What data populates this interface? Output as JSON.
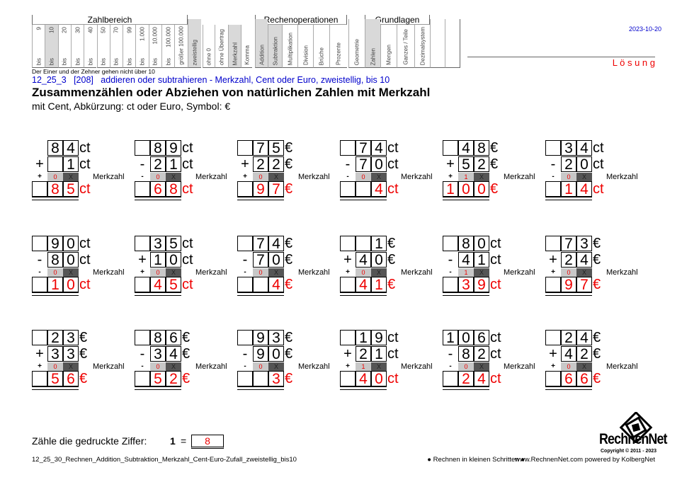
{
  "header": {
    "date": "2023-10-20",
    "solution_label": "L ö s u n g",
    "groups": {
      "zahlbereich": "Zahlbereich",
      "rechenoperationen": "Rechenoperationen",
      "grundlagen": "Grundlagen"
    },
    "range_columns": [
      {
        "top": "9",
        "bottom": "bis",
        "shaded": false
      },
      {
        "top": "10",
        "bottom": "bis",
        "shaded": true
      },
      {
        "top": "20",
        "bottom": "bis",
        "shaded": false
      },
      {
        "top": "30",
        "bottom": "bis",
        "shaded": false
      },
      {
        "top": "40",
        "bottom": "bis",
        "shaded": false
      },
      {
        "top": "50",
        "bottom": "bis",
        "shaded": false
      },
      {
        "top": "70",
        "bottom": "bis",
        "shaded": false
      },
      {
        "top": "99",
        "bottom": "bis",
        "shaded": false
      },
      {
        "top": "1.000",
        "bottom": "bis",
        "shaded": false
      },
      {
        "top": "10.000",
        "bottom": "bis",
        "shaded": false
      },
      {
        "top": "100.000",
        "bottom": "bis",
        "shaded": false
      },
      {
        "top": "",
        "bottom": "größer 100.000",
        "shaded": false
      }
    ],
    "other_columns": [
      {
        "label": "zweistellig",
        "shaded": true
      },
      {
        "label": "ohne 0",
        "shaded": false
      },
      {
        "label": "ohne Übertrag",
        "shaded": false
      },
      {
        "label": "Merkzahl",
        "shaded": true
      },
      {
        "label": "Komma",
        "shaded": false
      },
      {
        "label": "Addition",
        "shaded": true
      },
      {
        "label": "Subtraktion",
        "shaded": true
      },
      {
        "label": "Multiplikation",
        "shaded": false
      },
      {
        "label": "Division",
        "shaded": false
      },
      {
        "label": "Brüche",
        "shaded": false
      },
      {
        "label": "Prozente",
        "shaded": false
      },
      {
        "label": "Geometrie",
        "shaded": false
      },
      {
        "label": "Zahlen",
        "shaded": true
      },
      {
        "label": "Mengen",
        "shaded": false
      },
      {
        "label": "Ganzes / Teile",
        "shaded": false
      },
      {
        "label": "Dezimalsystem",
        "shaded": false
      },
      {
        "label": "",
        "shaded": false
      },
      {
        "label": "",
        "shaded": false
      }
    ],
    "note": "Der Einer und der Zehner gehen nicht über 10"
  },
  "task": {
    "code_line": "12_25_3   [208]   addieren oder subtrahieren - Merkzahl, Cent oder Euro, zweistellig, bis 10",
    "title": "Zusammenzählen oder Abziehen von natürlichen Zahlen mit Merkzahl",
    "subtitle": "mit Cent, Abkürzung: ct oder Euro, Symbol: €"
  },
  "merkzahl_label": "Merkzahl",
  "problems": [
    {
      "top": [
        "",
        "8",
        "4"
      ],
      "op": "+",
      "second": [
        "",
        "",
        "1"
      ],
      "carry": "0",
      "result": [
        "",
        "8",
        "5"
      ],
      "unit": "ct"
    },
    {
      "top": [
        "",
        "8",
        "9"
      ],
      "op": "-",
      "second": [
        "",
        "2",
        "1"
      ],
      "carry": "0",
      "result": [
        "",
        "6",
        "8"
      ],
      "unit": "ct"
    },
    {
      "top": [
        "",
        "7",
        "5"
      ],
      "op": "+",
      "second": [
        "",
        "2",
        "2"
      ],
      "carry": "0",
      "result": [
        "",
        "9",
        "7"
      ],
      "unit": "€"
    },
    {
      "top": [
        "",
        "7",
        "4"
      ],
      "op": "-",
      "second": [
        "",
        "7",
        "0"
      ],
      "carry": "0",
      "result": [
        "",
        "",
        "4"
      ],
      "unit": "ct"
    },
    {
      "top": [
        "",
        "4",
        "8"
      ],
      "op": "+",
      "second": [
        "",
        "5",
        "2"
      ],
      "carry": "1",
      "result": [
        "1",
        "0",
        "0"
      ],
      "unit": "€"
    },
    {
      "top": [
        "",
        "3",
        "4"
      ],
      "op": "-",
      "second": [
        "",
        "2",
        "0"
      ],
      "carry": "0",
      "result": [
        "",
        "1",
        "4"
      ],
      "unit": "ct"
    },
    {
      "top": [
        "",
        "9",
        "0"
      ],
      "op": "-",
      "second": [
        "",
        "8",
        "0"
      ],
      "carry": "0",
      "result": [
        "",
        "1",
        "0"
      ],
      "unit": "ct"
    },
    {
      "top": [
        "",
        "3",
        "5"
      ],
      "op": "+",
      "second": [
        "",
        "1",
        "0"
      ],
      "carry": "0",
      "result": [
        "",
        "4",
        "5"
      ],
      "unit": "ct"
    },
    {
      "top": [
        "",
        "7",
        "4"
      ],
      "op": "-",
      "second": [
        "",
        "7",
        "0"
      ],
      "carry": "0",
      "result": [
        "",
        "",
        "4"
      ],
      "unit": "€"
    },
    {
      "top": [
        "",
        "",
        "1"
      ],
      "op": "+",
      "second": [
        "",
        "4",
        "0"
      ],
      "carry": "0",
      "result": [
        "",
        "4",
        "1"
      ],
      "unit": "€"
    },
    {
      "top": [
        "",
        "8",
        "0"
      ],
      "op": "-",
      "second": [
        "",
        "4",
        "1"
      ],
      "carry": "1",
      "result": [
        "",
        "3",
        "9"
      ],
      "unit": "ct"
    },
    {
      "top": [
        "",
        "7",
        "3"
      ],
      "op": "+",
      "second": [
        "",
        "2",
        "4"
      ],
      "carry": "0",
      "result": [
        "",
        "9",
        "7"
      ],
      "unit": "€"
    },
    {
      "top": [
        "",
        "2",
        "3"
      ],
      "op": "+",
      "second": [
        "",
        "3",
        "3"
      ],
      "carry": "0",
      "result": [
        "",
        "5",
        "6"
      ],
      "unit": "€"
    },
    {
      "top": [
        "",
        "8",
        "6"
      ],
      "op": "-",
      "second": [
        "",
        "3",
        "4"
      ],
      "carry": "0",
      "result": [
        "",
        "5",
        "2"
      ],
      "unit": "€"
    },
    {
      "top": [
        "",
        "9",
        "3"
      ],
      "op": "-",
      "second": [
        "",
        "9",
        "0"
      ],
      "carry": "0",
      "result": [
        "",
        "",
        "3"
      ],
      "unit": "€"
    },
    {
      "top": [
        "",
        "1",
        "9"
      ],
      "op": "+",
      "second": [
        "",
        "2",
        "1"
      ],
      "carry": "1",
      "result": [
        "",
        "4",
        "0"
      ],
      "unit": "ct"
    },
    {
      "top": [
        "1",
        "0",
        "6"
      ],
      "op": "-",
      "second": [
        "",
        "8",
        "2"
      ],
      "carry": "0",
      "result": [
        "",
        "2",
        "4"
      ],
      "unit": "ct"
    },
    {
      "top": [
        "",
        "2",
        "4"
      ],
      "op": "+",
      "second": [
        "",
        "4",
        "2"
      ],
      "carry": "0",
      "result": [
        "",
        "6",
        "6"
      ],
      "unit": "€"
    }
  ],
  "count": {
    "label": "Zähle die gedruckte Ziffer:",
    "digit": "1",
    "equals": "=",
    "answer": "8"
  },
  "footer": {
    "filename": "12_25_30_Rechnen_Addition_Subtraktion_Merkzahl_Cent-Euro-Zufall_zweistellig_bis10",
    "slogan": "● Rechnen in kleinen Schritten ●",
    "website": "www.RechnenNet.com powered by KolbergNet",
    "logo_text": "RechnenNet",
    "copyright": "Copyright © 2011 - 2023"
  },
  "colors": {
    "answer": "#e00000",
    "shade": "#d9d9d9",
    "carry_dark": "#555555",
    "code_line": "#0000cc"
  }
}
